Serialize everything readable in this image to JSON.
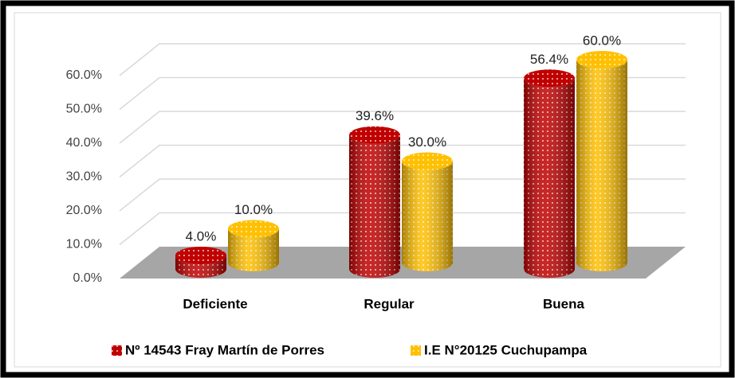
{
  "chart_data": {
    "type": "cylinder-bar",
    "categories": [
      "Deficiente",
      "Regular",
      "Buena"
    ],
    "series": [
      {
        "name": "Nº 14543 Fray Martín de Porres",
        "color": "#c00000",
        "values": [
          4.0,
          39.6,
          56.4
        ],
        "value_labels": [
          "4.0%",
          "39.6%",
          "56.4%"
        ]
      },
      {
        "name": "I.E N°20125 Cuchupampa",
        "color": "#ffc000",
        "values": [
          10.0,
          30.0,
          60.0
        ],
        "value_labels": [
          "10.0%",
          "30.0%",
          "60.0%"
        ]
      }
    ],
    "ylim": [
      0,
      70
    ],
    "yticks": [
      {
        "value": 0,
        "label": "0.0%"
      },
      {
        "value": 10,
        "label": "10.0%"
      },
      {
        "value": 20,
        "label": "20.0%"
      },
      {
        "value": 30,
        "label": "30.0%"
      },
      {
        "value": 40,
        "label": "40.0%"
      },
      {
        "value": 50,
        "label": "50.0%"
      },
      {
        "value": 60,
        "label": "60.0%"
      }
    ],
    "grid": true,
    "legend": "bottom"
  }
}
